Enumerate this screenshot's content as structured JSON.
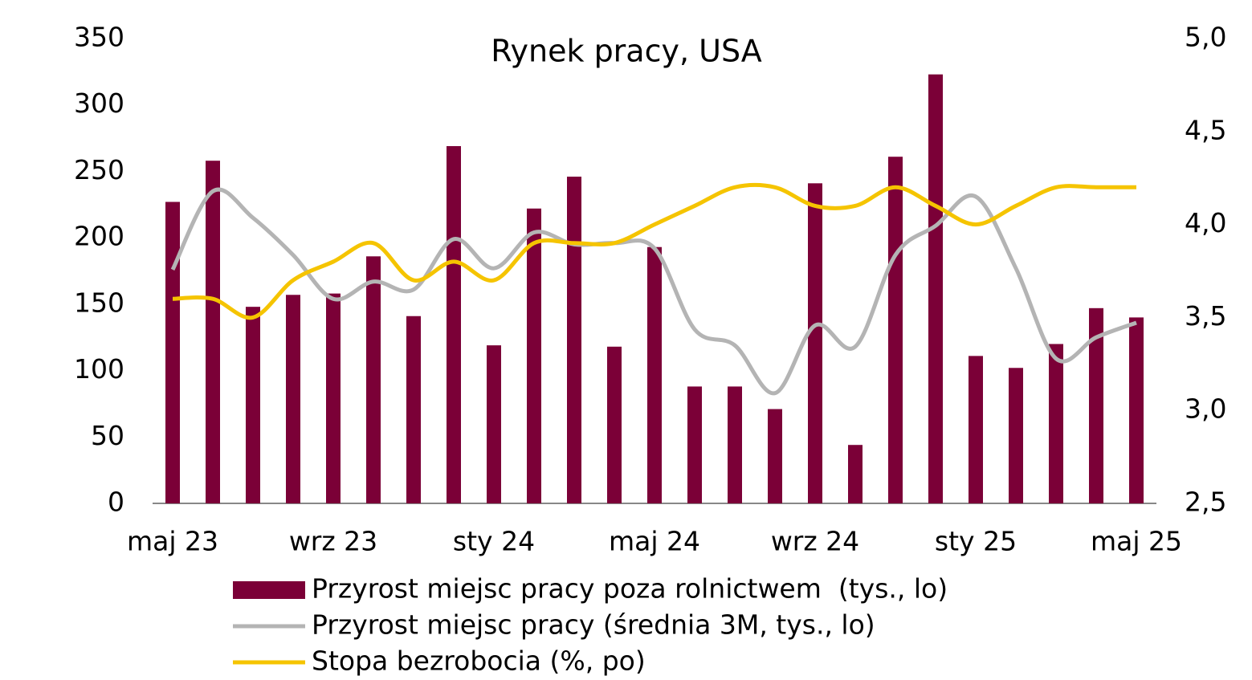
{
  "chart_data": {
    "type": "bar_line",
    "title": "Rynek pracy, USA",
    "categories": [
      "maj 23",
      null,
      null,
      null,
      "wrz 23",
      null,
      null,
      null,
      "sty 24",
      null,
      null,
      null,
      "maj 24",
      null,
      null,
      null,
      "wrz 24",
      null,
      null,
      null,
      "sty 25",
      null,
      null,
      null,
      "maj 25"
    ],
    "series": [
      {
        "name": "Przyrost miejsc pracy poza rolnictwem  (tys., lo)",
        "kind": "bar",
        "color": "#7b0037",
        "values": [
          227,
          258,
          148,
          157,
          158,
          186,
          141,
          269,
          119,
          222,
          246,
          118,
          193,
          88,
          88,
          71,
          241,
          44,
          261,
          323,
          111,
          102,
          120,
          147,
          140
        ]
      },
      {
        "name": "Przyrost miejsc pracy (średnia 3M, tys., lo)",
        "kind": "line",
        "color": "#b4b4b4",
        "values": [
          176,
          235,
          215,
          187,
          154,
          167,
          161,
          199,
          177,
          204,
          195,
          196,
          192,
          131,
          119,
          83,
          134,
          118,
          187,
          209,
          231,
          177,
          109,
          125,
          136
        ]
      },
      {
        "name": "Stopa bezrobocia (%, po)",
        "kind": "line",
        "axis": "y2",
        "color": "#f5c400",
        "values": [
          3.6,
          3.6,
          3.5,
          3.7,
          3.8,
          3.9,
          3.7,
          3.8,
          3.7,
          3.9,
          3.9,
          3.9,
          4.0,
          4.1,
          4.2,
          4.2,
          4.1,
          4.1,
          4.2,
          4.1,
          4.0,
          4.1,
          4.2,
          4.2,
          4.2
        ]
      }
    ],
    "ylim": [
      0,
      350
    ],
    "yticks": [
      0,
      50,
      100,
      150,
      200,
      250,
      300,
      350
    ],
    "y2lim": [
      2.5,
      5.0
    ],
    "y2ticks": [
      {
        "value": 2.5,
        "label": "2,5"
      },
      {
        "value": 3.0,
        "label": "3,0"
      },
      {
        "value": 3.5,
        "label": "3,5"
      },
      {
        "value": 4.0,
        "label": "4,0"
      },
      {
        "value": 4.5,
        "label": "4,5"
      },
      {
        "value": 5.0,
        "label": "5,0"
      }
    ],
    "grid": false
  }
}
